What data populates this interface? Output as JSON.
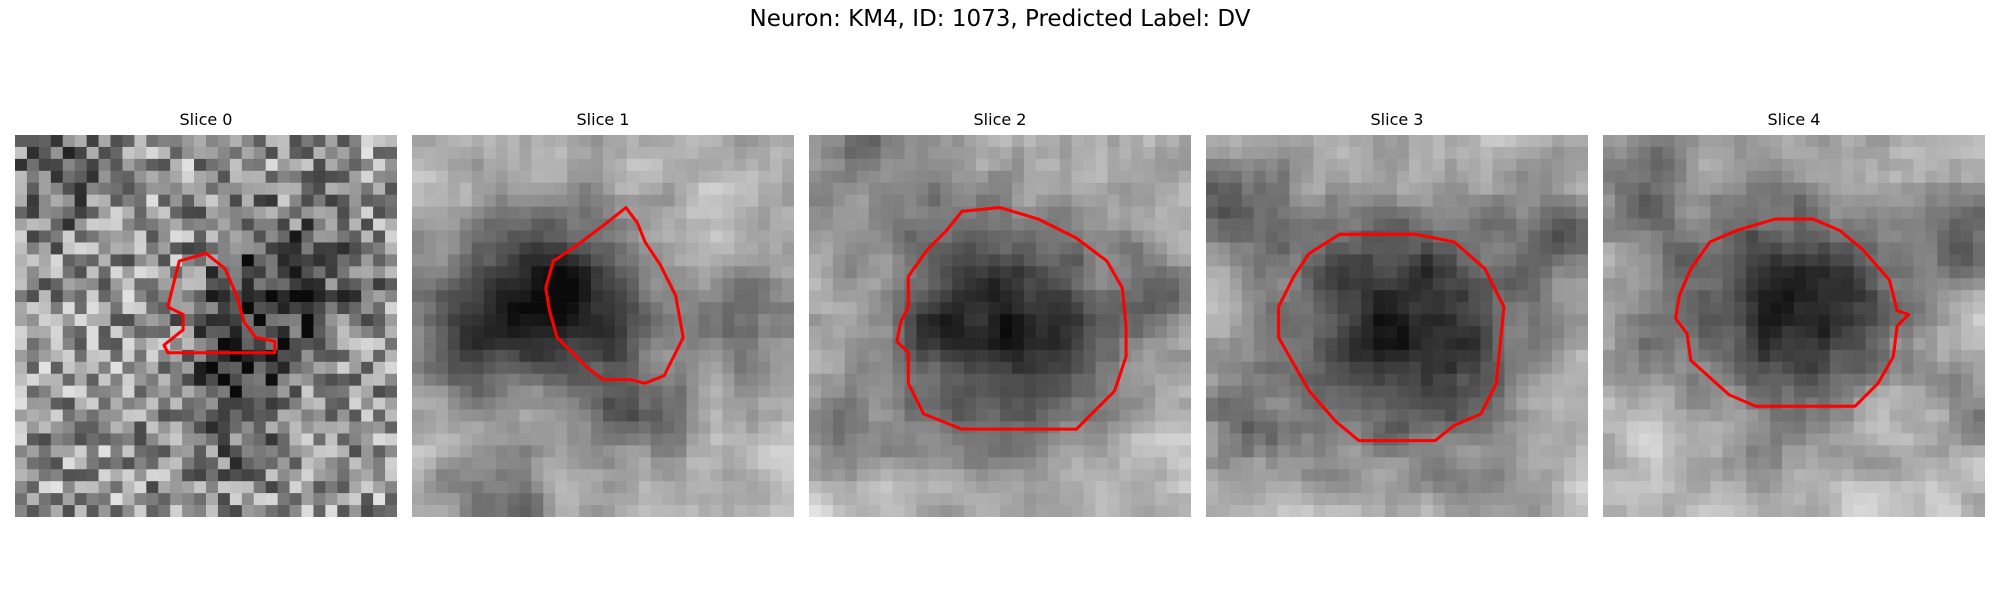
{
  "figure": {
    "title": "Neuron: KM4, ID: 1073, Predicted Label: DV"
  },
  "slices": [
    {
      "label": "Slice 0",
      "seed": 11,
      "noise": 0.65,
      "blur": 0,
      "base": 0.6,
      "blobs": [
        [
          0.7,
          0.4,
          0.13,
          -0.45
        ],
        [
          0.58,
          0.6,
          0.1,
          -0.3
        ],
        [
          0.12,
          0.12,
          0.1,
          -0.25
        ],
        [
          0.55,
          0.8,
          0.12,
          -0.15
        ]
      ],
      "contour": [
        [
          0.43,
          0.33
        ],
        [
          0.5,
          0.31
        ],
        [
          0.55,
          0.35
        ],
        [
          0.58,
          0.42
        ],
        [
          0.6,
          0.49
        ],
        [
          0.63,
          0.53
        ],
        [
          0.68,
          0.54
        ],
        [
          0.68,
          0.57
        ],
        [
          0.4,
          0.57
        ],
        [
          0.39,
          0.55
        ],
        [
          0.44,
          0.51
        ],
        [
          0.44,
          0.47
        ],
        [
          0.4,
          0.45
        ],
        [
          0.41,
          0.41
        ]
      ]
    },
    {
      "label": "Slice 1",
      "seed": 23,
      "noise": 0.35,
      "blur": 1,
      "base": 0.72,
      "blobs": [
        [
          0.32,
          0.42,
          0.16,
          -0.55
        ],
        [
          0.5,
          0.48,
          0.12,
          -0.35
        ],
        [
          0.1,
          0.55,
          0.12,
          -0.3
        ],
        [
          0.9,
          0.5,
          0.1,
          -0.3
        ],
        [
          0.6,
          0.75,
          0.1,
          -0.3
        ],
        [
          0.2,
          0.95,
          0.1,
          -0.3
        ]
      ],
      "contour": [
        [
          0.56,
          0.19
        ],
        [
          0.59,
          0.23
        ],
        [
          0.61,
          0.28
        ],
        [
          0.65,
          0.34
        ],
        [
          0.69,
          0.42
        ],
        [
          0.71,
          0.53
        ],
        [
          0.68,
          0.59
        ],
        [
          0.66,
          0.63
        ],
        [
          0.61,
          0.65
        ],
        [
          0.57,
          0.64
        ],
        [
          0.5,
          0.64
        ],
        [
          0.46,
          0.61
        ],
        [
          0.42,
          0.57
        ],
        [
          0.38,
          0.53
        ],
        [
          0.36,
          0.46
        ],
        [
          0.35,
          0.4
        ],
        [
          0.37,
          0.33
        ],
        [
          0.43,
          0.29
        ],
        [
          0.47,
          0.26
        ],
        [
          0.51,
          0.23
        ]
      ]
    },
    {
      "label": "Slice 2",
      "seed": 37,
      "noise": 0.35,
      "blur": 1,
      "base": 0.75,
      "blobs": [
        [
          0.5,
          0.5,
          0.23,
          -0.65
        ],
        [
          0.15,
          0.08,
          0.1,
          -0.3
        ],
        [
          0.9,
          0.4,
          0.08,
          -0.25
        ],
        [
          0.05,
          0.75,
          0.1,
          -0.25
        ]
      ],
      "contour": [
        [
          0.4,
          0.2
        ],
        [
          0.5,
          0.19
        ],
        [
          0.6,
          0.22
        ],
        [
          0.7,
          0.27
        ],
        [
          0.78,
          0.33
        ],
        [
          0.82,
          0.4
        ],
        [
          0.83,
          0.5
        ],
        [
          0.83,
          0.58
        ],
        [
          0.8,
          0.67
        ],
        [
          0.75,
          0.72
        ],
        [
          0.7,
          0.77
        ],
        [
          0.6,
          0.77
        ],
        [
          0.5,
          0.77
        ],
        [
          0.4,
          0.77
        ],
        [
          0.3,
          0.73
        ],
        [
          0.26,
          0.65
        ],
        [
          0.26,
          0.57
        ],
        [
          0.23,
          0.54
        ],
        [
          0.24,
          0.49
        ],
        [
          0.26,
          0.45
        ],
        [
          0.26,
          0.37
        ],
        [
          0.31,
          0.3
        ],
        [
          0.36,
          0.25
        ]
      ]
    },
    {
      "label": "Slice 3",
      "seed": 51,
      "noise": 0.35,
      "blur": 1,
      "base": 0.75,
      "blobs": [
        [
          0.53,
          0.52,
          0.24,
          -0.65
        ],
        [
          0.08,
          0.2,
          0.1,
          -0.35
        ],
        [
          0.95,
          0.25,
          0.1,
          -0.3
        ],
        [
          0.1,
          0.75,
          0.1,
          -0.25
        ]
      ],
      "contour": [
        [
          0.35,
          0.26
        ],
        [
          0.45,
          0.26
        ],
        [
          0.55,
          0.26
        ],
        [
          0.65,
          0.28
        ],
        [
          0.73,
          0.35
        ],
        [
          0.78,
          0.45
        ],
        [
          0.77,
          0.55
        ],
        [
          0.76,
          0.65
        ],
        [
          0.72,
          0.73
        ],
        [
          0.65,
          0.76
        ],
        [
          0.6,
          0.8
        ],
        [
          0.5,
          0.8
        ],
        [
          0.4,
          0.8
        ],
        [
          0.34,
          0.75
        ],
        [
          0.27,
          0.67
        ],
        [
          0.23,
          0.6
        ],
        [
          0.19,
          0.53
        ],
        [
          0.19,
          0.45
        ],
        [
          0.23,
          0.37
        ],
        [
          0.27,
          0.31
        ]
      ]
    },
    {
      "label": "Slice 4",
      "seed": 67,
      "noise": 0.35,
      "blur": 1,
      "base": 0.78,
      "blobs": [
        [
          0.5,
          0.45,
          0.22,
          -0.65
        ],
        [
          0.1,
          0.15,
          0.1,
          -0.35
        ],
        [
          0.95,
          0.25,
          0.1,
          -0.35
        ],
        [
          0.97,
          0.7,
          0.08,
          -0.3
        ],
        [
          0.1,
          0.55,
          0.08,
          -0.25
        ]
      ],
      "contour": [
        [
          0.35,
          0.25
        ],
        [
          0.45,
          0.22
        ],
        [
          0.55,
          0.22
        ],
        [
          0.62,
          0.25
        ],
        [
          0.68,
          0.3
        ],
        [
          0.75,
          0.38
        ],
        [
          0.77,
          0.46
        ],
        [
          0.8,
          0.47
        ],
        [
          0.77,
          0.5
        ],
        [
          0.76,
          0.58
        ],
        [
          0.72,
          0.65
        ],
        [
          0.66,
          0.71
        ],
        [
          0.6,
          0.71
        ],
        [
          0.5,
          0.71
        ],
        [
          0.4,
          0.71
        ],
        [
          0.33,
          0.68
        ],
        [
          0.23,
          0.59
        ],
        [
          0.22,
          0.52
        ],
        [
          0.19,
          0.48
        ],
        [
          0.2,
          0.42
        ],
        [
          0.23,
          0.35
        ],
        [
          0.28,
          0.28
        ]
      ]
    }
  ],
  "colors": {
    "contour": "#ff0000"
  }
}
